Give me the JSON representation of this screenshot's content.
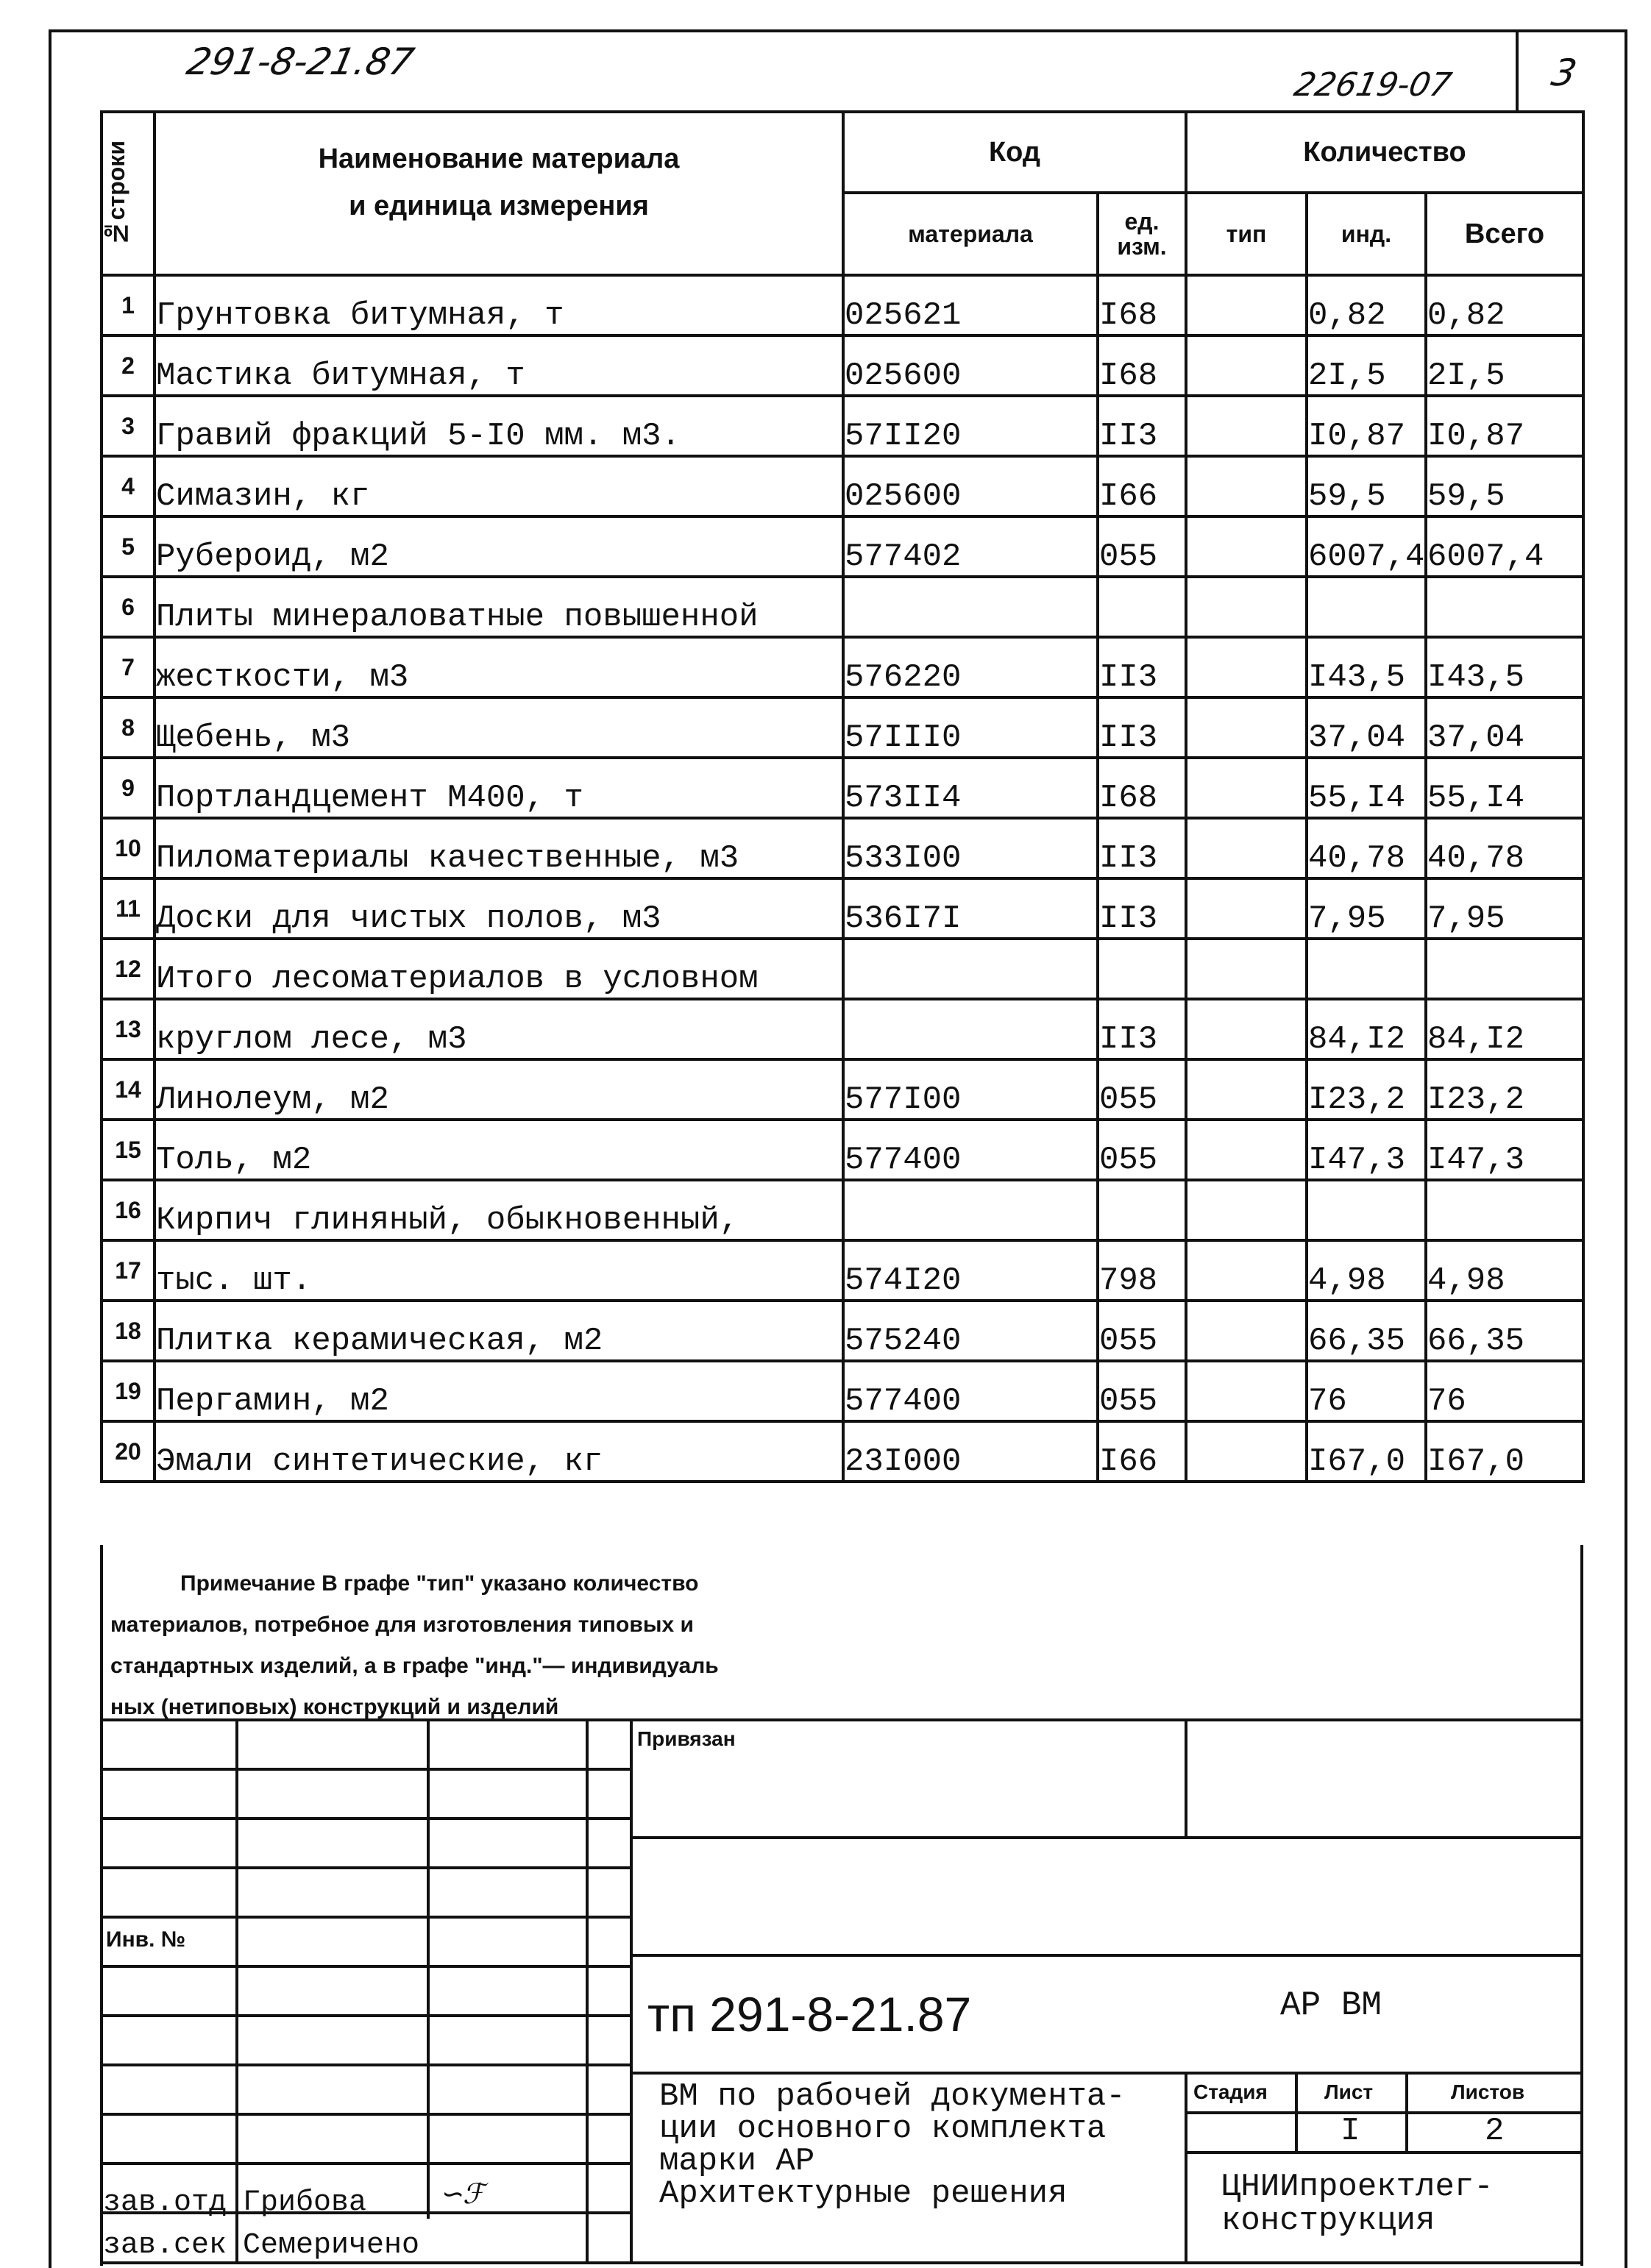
{
  "header": {
    "doc_code_handwritten": "291-8-21.87",
    "inventory_handwritten": "22619-07",
    "page_number": "3"
  },
  "table": {
    "columns": {
      "row_no": "№строки",
      "name_line1": "Наименование материала",
      "name_line2": "и единица измерения",
      "code_group": "Код",
      "code_material": "материала",
      "code_unit": "ед. изм.",
      "qty_group": "Количество",
      "qty_type": "тип",
      "qty_ind": "инд.",
      "qty_total": "Всего"
    },
    "rows": [
      {
        "n": "1",
        "name": "Грунтовка битумная, т",
        "code": "025621",
        "unit": "I68",
        "type": "",
        "ind": "0,82",
        "total": "0,82"
      },
      {
        "n": "2",
        "name": "Мастика битумная, т",
        "code": "025600",
        "unit": "I68",
        "type": "",
        "ind": "2I,5",
        "total": "2I,5"
      },
      {
        "n": "3",
        "name": "Гравий фракций 5-I0 мм. м3.",
        "code": "57II20",
        "unit": "II3",
        "type": "",
        "ind": "I0,87",
        "total": "I0,87"
      },
      {
        "n": "4",
        "name": "Симазин, кг",
        "code": "025600",
        "unit": "I66",
        "type": "",
        "ind": "59,5",
        "total": "59,5"
      },
      {
        "n": "5",
        "name": "Рубероид, м2",
        "code": "577402",
        "unit": "055",
        "type": "",
        "ind": "6007,4",
        "total": "6007,4"
      },
      {
        "n": "6",
        "name": "Плиты минераловатные повышенной",
        "code": "",
        "unit": "",
        "type": "",
        "ind": "",
        "total": ""
      },
      {
        "n": "7",
        "name": "жесткости, м3",
        "code": "576220",
        "unit": "II3",
        "type": "",
        "ind": "I43,5",
        "total": "I43,5"
      },
      {
        "n": "8",
        "name": "Щебень, м3",
        "code": "57III0",
        "unit": "II3",
        "type": "",
        "ind": "37,04",
        "total": "37,04"
      },
      {
        "n": "9",
        "name": "Портландцемент М400, т",
        "code": "573II4",
        "unit": "I68",
        "type": "",
        "ind": "55,I4",
        "total": "55,I4"
      },
      {
        "n": "10",
        "name": "Пиломатериалы качественные, м3",
        "code": "533I00",
        "unit": "II3",
        "type": "",
        "ind": "40,78",
        "total": "40,78"
      },
      {
        "n": "11",
        "name": "Доски для чистых полов, м3",
        "code": "536I7I",
        "unit": "II3",
        "type": "",
        "ind": "7,95",
        "total": "7,95"
      },
      {
        "n": "12",
        "name": "Итого лесоматериалов в условном",
        "code": "",
        "unit": "",
        "type": "",
        "ind": "",
        "total": ""
      },
      {
        "n": "13",
        "name": "круглом лесе, м3",
        "code": "",
        "unit": "II3",
        "type": "",
        "ind": "84,I2",
        "total": "84,I2"
      },
      {
        "n": "14",
        "name": "Линолеум, м2",
        "code": "577I00",
        "unit": "055",
        "type": "",
        "ind": "I23,2",
        "total": "I23,2"
      },
      {
        "n": "15",
        "name": "Толь, м2",
        "code": "577400",
        "unit": "055",
        "type": "",
        "ind": "I47,3",
        "total": "I47,3"
      },
      {
        "n": "16",
        "name": "Кирпич глиняный, обыкновенный,",
        "code": "",
        "unit": "",
        "type": "",
        "ind": "",
        "total": ""
      },
      {
        "n": "17",
        "name": "тыс. шт.",
        "code": "574I20",
        "unit": "798",
        "type": "",
        "ind": "4,98",
        "total": "4,98"
      },
      {
        "n": "18",
        "name": "Плитка керамическая, м2",
        "code": "575240",
        "unit": "055",
        "type": "",
        "ind": "66,35",
        "total": "66,35"
      },
      {
        "n": "19",
        "name": "Пергамин, м2",
        "code": "577400",
        "unit": "055",
        "type": "",
        "ind": "76",
        "total": "76"
      },
      {
        "n": "20",
        "name": "Эмали синтетические, кг",
        "code": "23I000",
        "unit": "I66",
        "type": "",
        "ind": "I67,0",
        "total": "I67,0"
      }
    ]
  },
  "note": {
    "line1": "Примечание В графе \"тип\" указано количество",
    "line2": "материалов, потребное для изготовления типовых и",
    "line3": "стандартных изделий, а в графе \"инд.\"— индивидуаль",
    "line4": "ных (нетиповых) конструкций и изделий"
  },
  "title_block": {
    "attached_label": "Привязан",
    "inv_label": "Инв. №",
    "doc_number": "тп 291-8-21.87",
    "mark": "АР ВМ",
    "description": [
      "ВМ по рабочей документа-",
      "ции основного комплекта",
      "марки АР",
      "Архитектурные решения"
    ],
    "stage_label": "Стадия",
    "sheet_label": "Лист",
    "sheets_label": "Листов",
    "stage_value": "",
    "sheet_value": "I",
    "sheets_value": "2",
    "organization": [
      "ЦНИИпроектлег-",
      "конструкция"
    ],
    "signers": [
      {
        "role": "зав.отд",
        "name": "Грибова"
      },
      {
        "role": "зав.сек",
        "name": "Семеричено"
      }
    ]
  }
}
